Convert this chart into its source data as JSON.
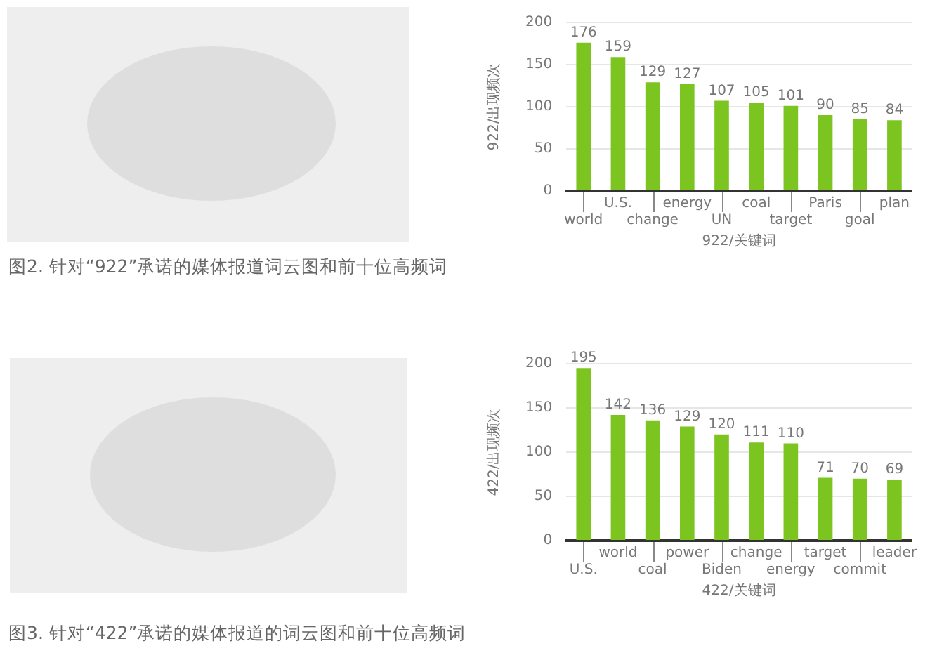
{
  "chart_data": [
    {
      "type": "bar",
      "categories": [
        "world",
        "U.S.",
        "change",
        "energy",
        "UN",
        "coal",
        "target",
        "Paris",
        "goal",
        "plan"
      ],
      "values": [
        176,
        159,
        129,
        127,
        107,
        105,
        101,
        90,
        85,
        84
      ],
      "color": "#7cc520",
      "ylim": [
        0,
        200
      ],
      "yticks": [
        0,
        50,
        100,
        150,
        200
      ],
      "grid": "y",
      "data_labels": true,
      "xlabel": "922/关键词",
      "ylabel": "922/出现频次",
      "annotations": [
        "图2. 针对“922”承诺的媒体报道词云图和前十位高频词"
      ]
    },
    {
      "type": "bar",
      "categories": [
        "U.S.",
        "world",
        "coal",
        "power",
        "Biden",
        "change",
        "energy",
        "target",
        "commit",
        "leader"
      ],
      "values": [
        195,
        142,
        136,
        129,
        120,
        111,
        110,
        71,
        70,
        69
      ],
      "color": "#7cc520",
      "ylim": [
        0,
        200
      ],
      "yticks": [
        0,
        50,
        100,
        150,
        200
      ],
      "grid": "y",
      "data_labels": true,
      "xlabel": "422/关键词",
      "ylabel": "422/出现频次",
      "annotations": [
        "图3. 针对“422”承诺的媒体报道的词云图和前十位高频词"
      ]
    }
  ]
}
